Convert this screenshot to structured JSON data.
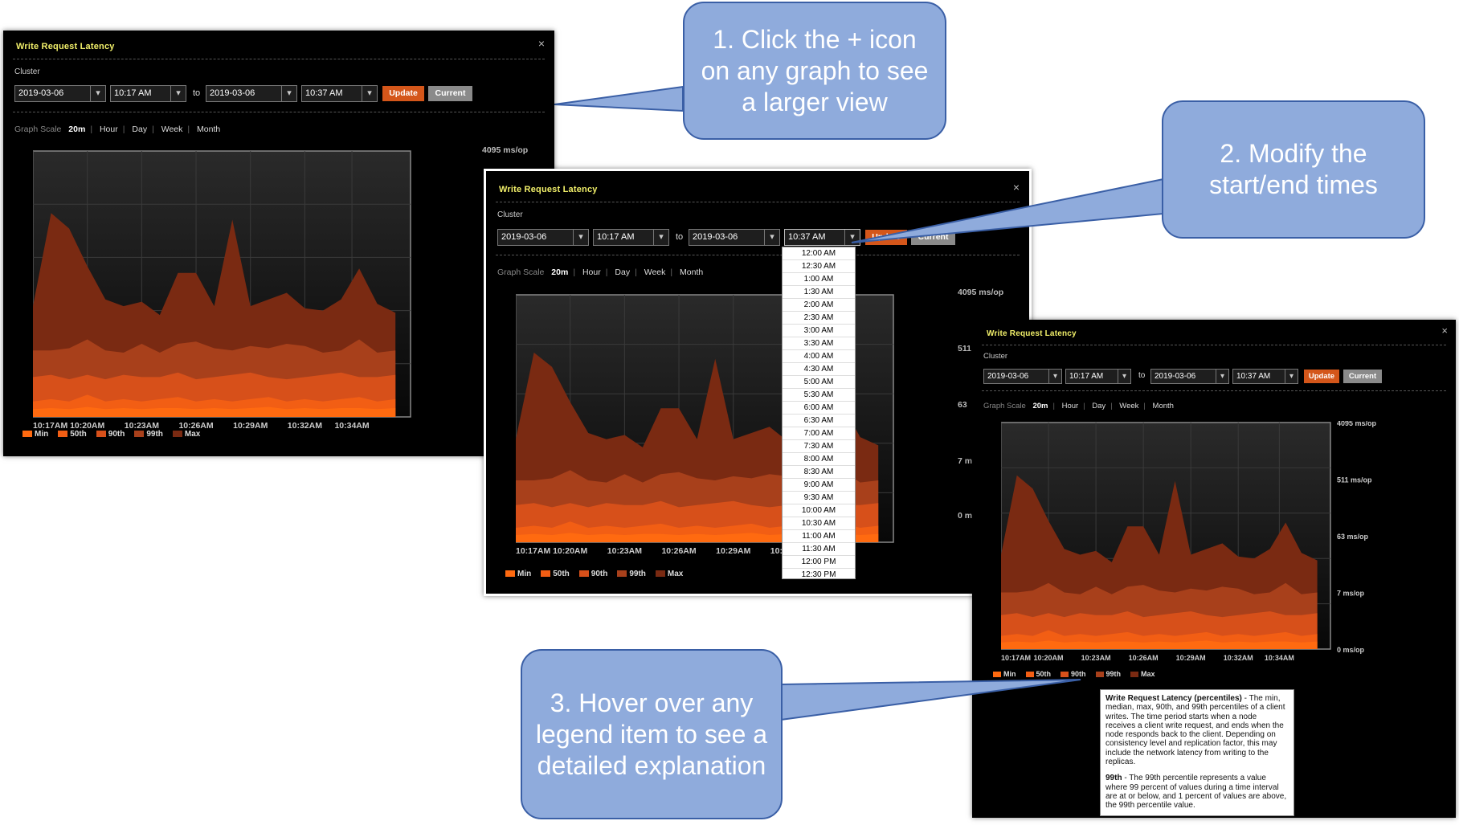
{
  "callouts": {
    "step1": "1. Click the + icon on any graph to see a larger view",
    "step2": "2. Modify the start/end times",
    "step3": "3. Hover over any legend item to see a detailed explanation"
  },
  "panel": {
    "title": "Write Request Latency",
    "close_icon": "×",
    "cluster_label": "Cluster",
    "to_label": "to",
    "update_label": "Update",
    "current_label": "Current",
    "graph_scale_label": "Graph Scale",
    "scale_options": [
      "20m",
      "Hour",
      "Day",
      "Week",
      "Month"
    ],
    "active_scale": "20m",
    "dropdown_arrow": "▾"
  },
  "panel1": {
    "start_date": "2019-03-06",
    "start_time": "10:17 AM",
    "end_date": "2019-03-06",
    "end_time": "10:37 AM",
    "y_top_label": "4095 ms/op"
  },
  "panel2": {
    "start_date": "2019-03-06",
    "start_time": "10:17 AM",
    "end_date": "2019-03-06",
    "end_time": "10:37 AM",
    "y_top_label": "4095 ms/op",
    "y_label_2": "511",
    "y_label_3": "63",
    "y_label_4": "7 m",
    "y_label_5": "0 m"
  },
  "panel3": {
    "start_date": "2019-03-06",
    "start_time": "10:17 AM",
    "end_date": "2019-03-06",
    "end_time": "10:37 AM"
  },
  "time_dropdown": {
    "options": [
      "12:00 AM",
      "12:30 AM",
      "1:00 AM",
      "1:30 AM",
      "2:00 AM",
      "2:30 AM",
      "3:00 AM",
      "3:30 AM",
      "4:00 AM",
      "4:30 AM",
      "5:00 AM",
      "5:30 AM",
      "6:00 AM",
      "6:30 AM",
      "7:00 AM",
      "7:30 AM",
      "8:00 AM",
      "8:30 AM",
      "9:00 AM",
      "9:30 AM",
      "10:00 AM",
      "10:30 AM",
      "11:00 AM",
      "11:30 AM",
      "12:00 PM",
      "12:30 PM"
    ]
  },
  "tooltip": {
    "heading": "Write Request Latency (percentiles)",
    "body": " - The min, median, max, 90th, and 99th percentiles of a client writes. The time period starts when a node receives a client write request, and ends when the node responds back to the client. Depending on consistency level and replication factor, this may include the network latency from writing to the replicas.",
    "p99_heading": "99th",
    "p99_body": " - The 99th percentile represents a value where 99 percent of values during a time interval are at or below, and 1 percent of values are above, the 99th percentile value."
  },
  "chart_data": {
    "type": "area",
    "title": "Write Request Latency",
    "scale": "log2",
    "y_tick_labels": [
      "4095 ms/op",
      "511 ms/op",
      "63 ms/op",
      "7 ms/op",
      "0 ms/op"
    ],
    "x_tick_labels": [
      "10:17AM",
      "10:20AM",
      "10:23AM",
      "10:26AM",
      "10:29AM",
      "10:32AM",
      "10:34AM"
    ],
    "x_index_max": 20,
    "y_scale_max": 12,
    "legend": [
      "Min",
      "50th",
      "90th",
      "99th",
      "Max"
    ],
    "colors": {
      "Min": "#ff6a10",
      "50th": "#f25e14",
      "90th": "#d7501a",
      "99th": "#a8401b",
      "Max": "#7a2a12"
    },
    "series": [
      {
        "name": "Max",
        "values": [
          5.0,
          9.2,
          8.5,
          6.8,
          5.3,
          5.0,
          5.2,
          4.6,
          6.5,
          6.5,
          5.0,
          8.9,
          5.0,
          5.3,
          5.6,
          4.9,
          4.8,
          5.3,
          6.7,
          5.1,
          4.7
        ]
      },
      {
        "name": "99th",
        "values": [
          3.0,
          3.0,
          3.1,
          3.5,
          3.0,
          2.9,
          3.3,
          2.9,
          3.3,
          3.4,
          3.1,
          3.0,
          3.2,
          3.1,
          3.3,
          3.2,
          2.9,
          3.0,
          3.5,
          2.9,
          3.0
        ]
      },
      {
        "name": "90th",
        "values": [
          1.8,
          1.9,
          1.7,
          1.9,
          1.7,
          1.9,
          1.8,
          1.8,
          2.0,
          1.7,
          1.8,
          1.9,
          2.0,
          1.8,
          1.7,
          1.8,
          1.9,
          2.0,
          1.8,
          1.8,
          1.9
        ]
      },
      {
        "name": "50th",
        "values": [
          0.7,
          0.8,
          0.7,
          1.0,
          0.7,
          0.8,
          0.7,
          0.8,
          0.9,
          0.7,
          0.8,
          0.7,
          0.8,
          0.9,
          0.7,
          0.8,
          0.7,
          0.8,
          0.9,
          0.7,
          0.8
        ]
      },
      {
        "name": "Min",
        "values": [
          0.35,
          0.4,
          0.35,
          0.45,
          0.35,
          0.4,
          0.35,
          0.4,
          0.4,
          0.35,
          0.4,
          0.35,
          0.4,
          0.45,
          0.35,
          0.4,
          0.35,
          0.4,
          0.4,
          0.35,
          0.4
        ]
      }
    ]
  }
}
